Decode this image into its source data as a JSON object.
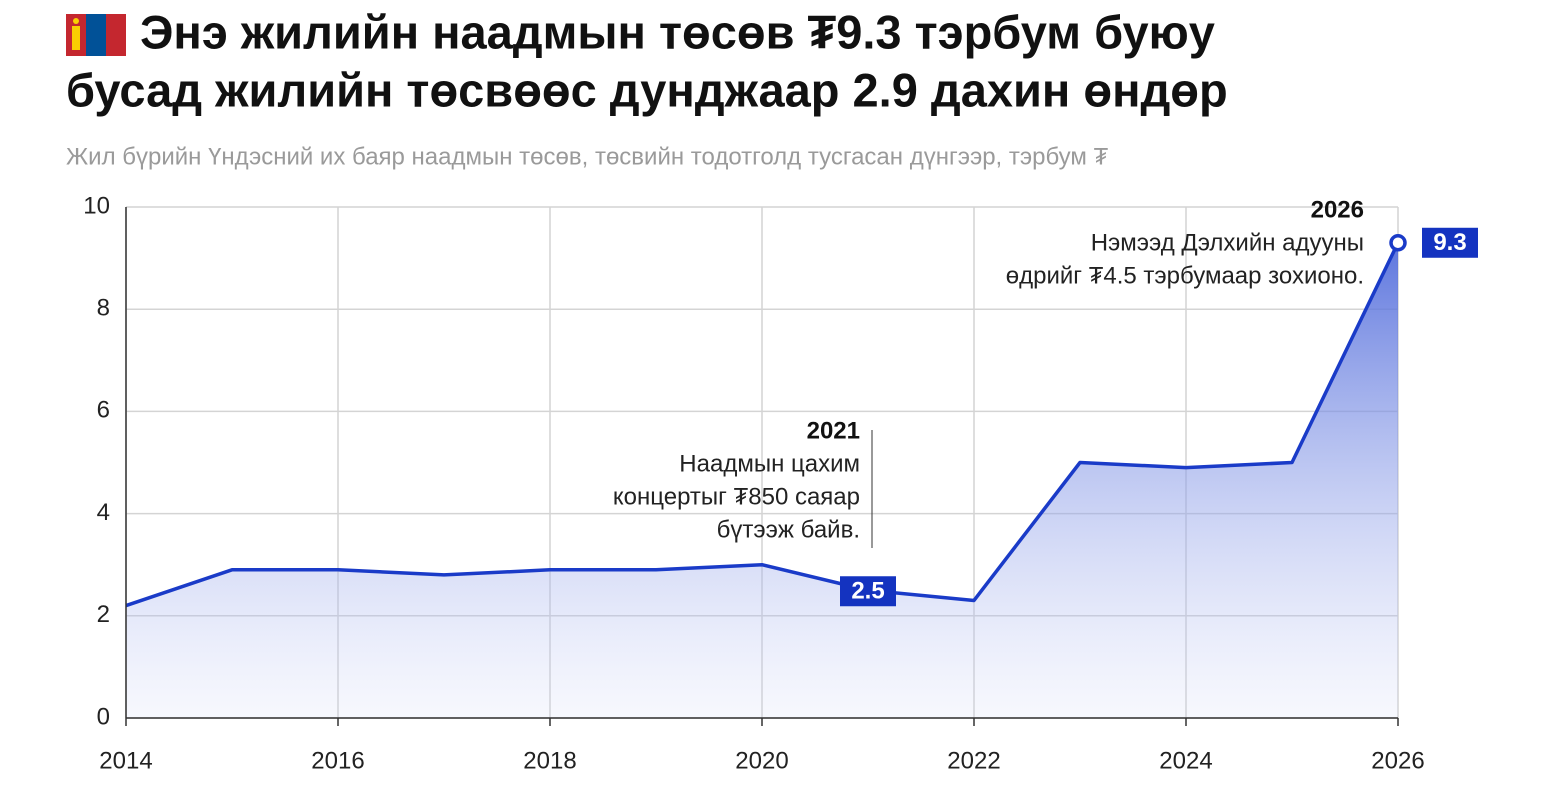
{
  "chart_data": {
    "type": "area",
    "title": [
      "Энэ жилийн наадмын төсөв ₮9.3 тэрбум буюу",
      "бусад жилийн төсвөөс дунджаар 2.9 дахин өндөр"
    ],
    "subtitle": "Жил бүрийн Үндэсний их баяр наадмын төсөв, төсвийн тодотголд тусгасан дүнгээр, тэрбум ₮",
    "x": [
      2014,
      2015,
      2016,
      2017,
      2018,
      2019,
      2020,
      2021,
      2022,
      2023,
      2024,
      2025,
      2026
    ],
    "values": [
      2.2,
      2.9,
      2.9,
      2.8,
      2.9,
      2.9,
      3.0,
      2.5,
      2.3,
      5.0,
      4.9,
      5.0,
      9.3
    ],
    "color": "#1a3bc8",
    "label_color": "#1433c0",
    "xlim": [
      2014,
      2026
    ],
    "xticks": [
      2014,
      2016,
      2018,
      2020,
      2022,
      2024,
      2026
    ],
    "ylim": [
      0,
      10
    ],
    "yticks": [
      0,
      2,
      4,
      6,
      8,
      10
    ],
    "grid": true,
    "annotations": [
      {
        "x": 2021,
        "text": [
          "Наадмын цахим",
          "концертыг ₮850 саяар",
          "бүтээж байв."
        ],
        "leader": true
      },
      {
        "x": 2026,
        "text": [
          "Нэмээд Дэлхийн адууны",
          "өдрийг ₮4.5 тэрбумаар зохионо."
        ],
        "leader": false
      }
    ]
  }
}
